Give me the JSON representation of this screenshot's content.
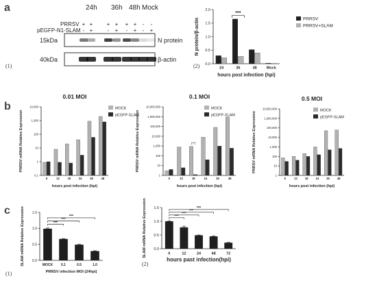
{
  "panel_labels": {
    "a": "a",
    "b": "b",
    "c": "c"
  },
  "sub_labels": {
    "a1": "(1)",
    "a2": "(2)",
    "c1": "(1)",
    "c2": "(2)"
  },
  "western": {
    "time_headers": [
      "24h",
      "36h",
      "48h",
      "Mock"
    ],
    "row_labels": [
      "PRRSV",
      "pEGFP-N1-SLAM"
    ],
    "prrsv_signs": [
      "+",
      "+",
      "+",
      "+",
      "+",
      "+",
      "-",
      "-"
    ],
    "slam_signs": [
      "-",
      "+",
      "-",
      "+",
      "-",
      "+",
      "-",
      "+"
    ],
    "bands": [
      {
        "kda": "15kDa",
        "name": "N protein"
      },
      {
        "kda": "40kDa",
        "name": "β-actin"
      }
    ]
  },
  "colors": {
    "dark": "#1f1f1f",
    "light": "#b2b2b2",
    "axis": "#222222"
  },
  "chart_data": [
    {
      "id": "a2",
      "type": "bar",
      "scale": "linear",
      "categories": [
        "24",
        "36",
        "48",
        "Mock"
      ],
      "series": [
        {
          "name": "PRRSV",
          "values": [
            0.3,
            1.65,
            0.52,
            0.02
          ]
        },
        {
          "name": "PRRSV+SLAM",
          "values": [
            0.22,
            0.27,
            0.4,
            0.01
          ]
        }
      ],
      "ylim": [
        0,
        2.0
      ],
      "yticks": [
        "0.0",
        "0.5",
        "1.0",
        "1.5",
        "2.0"
      ],
      "xlabel": "hours post infection (hpi)",
      "ylabel": "N protein/β-actin",
      "title": "",
      "legend": "top-right",
      "annotations": [
        {
          "text": "***",
          "between": [
            "36"
          ]
        }
      ]
    },
    {
      "id": "b1",
      "type": "bar",
      "scale": "log",
      "categories": [
        "6",
        "12",
        "18",
        "24",
        "36",
        "48"
      ],
      "series": [
        {
          "name": "MOCK",
          "values": [
            0.9,
            8,
            20,
            40,
            900,
            2000
          ]
        },
        {
          "name": "pEGFP-SLAM",
          "values": [
            1,
            0.9,
            0.8,
            3,
            60,
            800
          ]
        }
      ],
      "ylim": [
        0.1,
        10000
      ],
      "ytick_labels": [
        "0.1",
        "1",
        "10",
        "100",
        "1,000",
        "10,000"
      ],
      "xlabel": "hours post infection (hpi)",
      "ylabel": "PRRSV mRNA Relative Expression",
      "title": "0.01 MOI",
      "legend": "top-right"
    },
    {
      "id": "b2",
      "type": "bar",
      "scale": "log",
      "categories": [
        "6",
        "12",
        "18",
        "24",
        "36",
        "48"
      ],
      "series": [
        {
          "name": "MOCK",
          "values": [
            3,
            800,
            900,
            8000,
            80000,
            900000
          ]
        },
        {
          "name": "pEGFP-SLAM",
          "values": [
            4,
            6,
            1.2,
            40,
            1000,
            600
          ]
        }
      ],
      "ylim": [
        1,
        10000000
      ],
      "ytick_labels": [
        "1",
        "10",
        "100",
        "1,000",
        "10,000",
        "100,000",
        "1,000,000",
        "10,000,000"
      ],
      "xlabel": "hours post infection (hpi)",
      "ylabel": "PRRSV mRNA Relative Expression",
      "title": "0.1 MOI",
      "legend": "top-right",
      "annotations": [
        {
          "text": "(**)",
          "category": "18"
        }
      ]
    },
    {
      "id": "b3",
      "type": "bar",
      "scale": "log",
      "categories": [
        "6",
        "12",
        "18",
        "24",
        "36",
        "48"
      ],
      "series": [
        {
          "name": "MOCK",
          "values": [
            70,
            100,
            200,
            1000,
            50000,
            60000
          ]
        },
        {
          "name": "pEGFP-SLAM",
          "values": [
            30,
            40,
            100,
            150,
            500,
            700
          ]
        }
      ],
      "ylim": [
        1,
        10000000
      ],
      "ytick_labels": [
        "1",
        "10",
        "100",
        "1,000",
        "10,000",
        "100,000",
        "1,000,000",
        "10,000,000"
      ],
      "xlabel": "hours post infection (hpi)",
      "ylabel": "PRRSV mRNA Relative Expression",
      "title": "0.5 MOI",
      "legend": "top-right"
    },
    {
      "id": "c1",
      "type": "bar",
      "scale": "linear",
      "categories": [
        "MOCK",
        "0.1",
        "0.5",
        "1.0"
      ],
      "values": [
        0.99,
        0.67,
        0.49,
        0.29
      ],
      "errors": [
        0.02,
        0.01,
        0.01,
        0.01
      ],
      "ylim": [
        0,
        1.5
      ],
      "yticks": [
        "0.0",
        "0.5",
        "1.0",
        "1.5"
      ],
      "xlabel": "PRRSV infection MOI (24hpi)",
      "ylabel": "SLAM mRNA Relative Expression",
      "title": "",
      "annotations": [
        "***",
        "***",
        "***"
      ]
    },
    {
      "id": "c2",
      "type": "bar",
      "scale": "linear",
      "categories": [
        "0",
        "12",
        "24",
        "48",
        "72"
      ],
      "values": [
        1.0,
        0.78,
        0.49,
        0.45,
        0.22
      ],
      "errors": [
        0.02,
        0.04,
        0.01,
        0.02,
        0.01
      ],
      "ylim": [
        0,
        1.5
      ],
      "yticks": [
        "0.0",
        "0.5",
        "1.0",
        "1.5"
      ],
      "xlabel": "hours past infection(hpi)",
      "ylabel": "SLAM mRNA Relative Expression",
      "title": "",
      "annotations": [
        "***",
        "***",
        "***",
        "***"
      ]
    }
  ]
}
